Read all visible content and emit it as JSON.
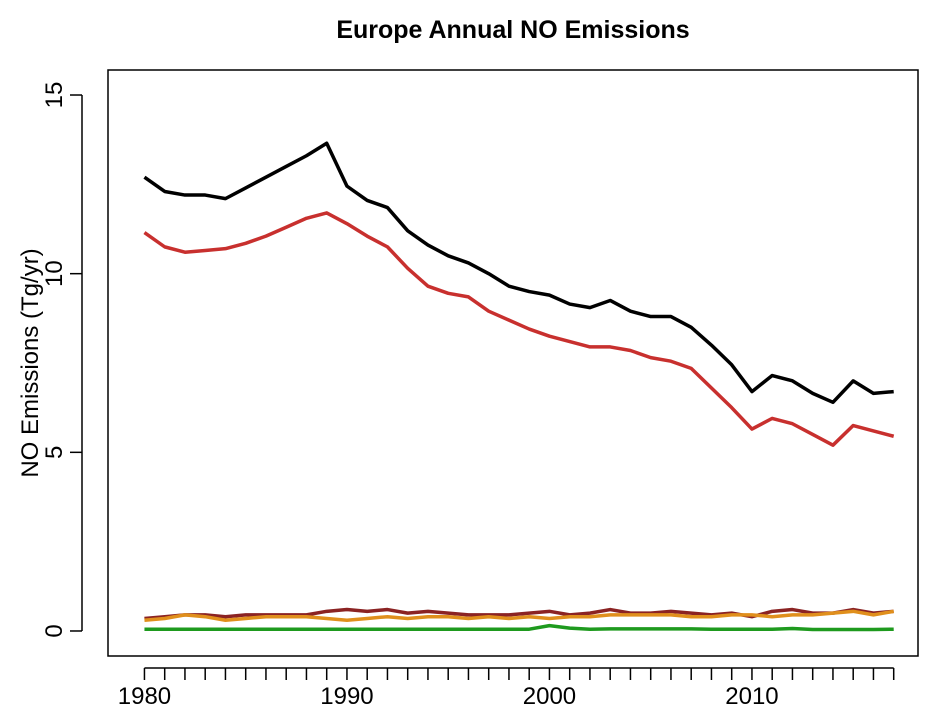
{
  "chart_data": {
    "type": "line",
    "title": "Europe Annual NO Emissions",
    "y_label": "NO Emissions (Tg/yr)",
    "x": [
      1980,
      1981,
      1982,
      1983,
      1984,
      1985,
      1986,
      1987,
      1988,
      1989,
      1990,
      1991,
      1992,
      1993,
      1994,
      1995,
      1996,
      1997,
      1998,
      1999,
      2000,
      2001,
      2002,
      2003,
      2004,
      2005,
      2006,
      2007,
      2008,
      2009,
      2010,
      2011,
      2012,
      2013,
      2014,
      2015,
      2016,
      2017
    ],
    "xlim": [
      1978.2,
      2018.2
    ],
    "xticks": [
      1980,
      1990,
      2000,
      2010
    ],
    "xminor_ticks": [
      1981,
      1982,
      1983,
      1984,
      1985,
      1986,
      1987,
      1988,
      1989,
      1991,
      1992,
      1993,
      1994,
      1995,
      1996,
      1997,
      1998,
      1999,
      2001,
      2002,
      2003,
      2004,
      2005,
      2006,
      2007,
      2008,
      2009,
      2011,
      2012,
      2013,
      2014,
      2015,
      2016,
      2017
    ],
    "ylim": [
      -0.7,
      15.7
    ],
    "yticks": [
      0,
      5,
      10,
      15
    ],
    "series": [
      {
        "color": "#000000",
        "values": [
          12.7,
          12.3,
          12.2,
          12.2,
          12.1,
          12.4,
          12.7,
          13.0,
          13.3,
          13.65,
          12.45,
          12.05,
          11.85,
          11.2,
          10.8,
          10.5,
          10.3,
          10.0,
          9.65,
          9.5,
          9.4,
          9.15,
          9.05,
          9.25,
          8.95,
          8.8,
          8.8,
          8.5,
          8.0,
          7.45,
          6.7,
          7.15,
          7.0,
          6.65,
          6.4,
          7.0,
          6.65,
          6.7
        ]
      },
      {
        "color": "#c8302e",
        "values": [
          11.15,
          10.75,
          10.6,
          10.65,
          10.7,
          10.85,
          11.05,
          11.3,
          11.55,
          11.7,
          11.4,
          11.05,
          10.75,
          10.15,
          9.65,
          9.45,
          9.35,
          8.95,
          8.7,
          8.45,
          8.25,
          8.1,
          7.95,
          7.95,
          7.85,
          7.65,
          7.55,
          7.35,
          6.8,
          6.25,
          5.65,
          5.95,
          5.8,
          5.5,
          5.2,
          5.75,
          5.6,
          5.45
        ]
      },
      {
        "color": "#8b2323",
        "values": [
          0.35,
          0.4,
          0.45,
          0.45,
          0.4,
          0.45,
          0.45,
          0.45,
          0.45,
          0.55,
          0.6,
          0.55,
          0.6,
          0.5,
          0.55,
          0.5,
          0.45,
          0.45,
          0.45,
          0.5,
          0.55,
          0.45,
          0.5,
          0.6,
          0.5,
          0.5,
          0.55,
          0.5,
          0.45,
          0.5,
          0.4,
          0.55,
          0.6,
          0.5,
          0.5,
          0.6,
          0.5,
          0.55
        ]
      },
      {
        "color": "#e08f1c",
        "values": [
          0.3,
          0.35,
          0.45,
          0.4,
          0.3,
          0.35,
          0.4,
          0.4,
          0.4,
          0.35,
          0.3,
          0.35,
          0.4,
          0.35,
          0.4,
          0.4,
          0.35,
          0.4,
          0.35,
          0.4,
          0.35,
          0.4,
          0.4,
          0.45,
          0.45,
          0.45,
          0.45,
          0.4,
          0.4,
          0.45,
          0.45,
          0.4,
          0.45,
          0.45,
          0.5,
          0.55,
          0.45,
          0.55
        ]
      },
      {
        "color": "#1e9a1e",
        "values": [
          0.05,
          0.05,
          0.05,
          0.05,
          0.05,
          0.05,
          0.05,
          0.05,
          0.05,
          0.05,
          0.05,
          0.05,
          0.05,
          0.05,
          0.05,
          0.05,
          0.05,
          0.05,
          0.05,
          0.05,
          0.15,
          0.08,
          0.05,
          0.06,
          0.06,
          0.06,
          0.06,
          0.06,
          0.05,
          0.05,
          0.05,
          0.05,
          0.07,
          0.04,
          0.04,
          0.04,
          0.04,
          0.05
        ]
      }
    ]
  }
}
